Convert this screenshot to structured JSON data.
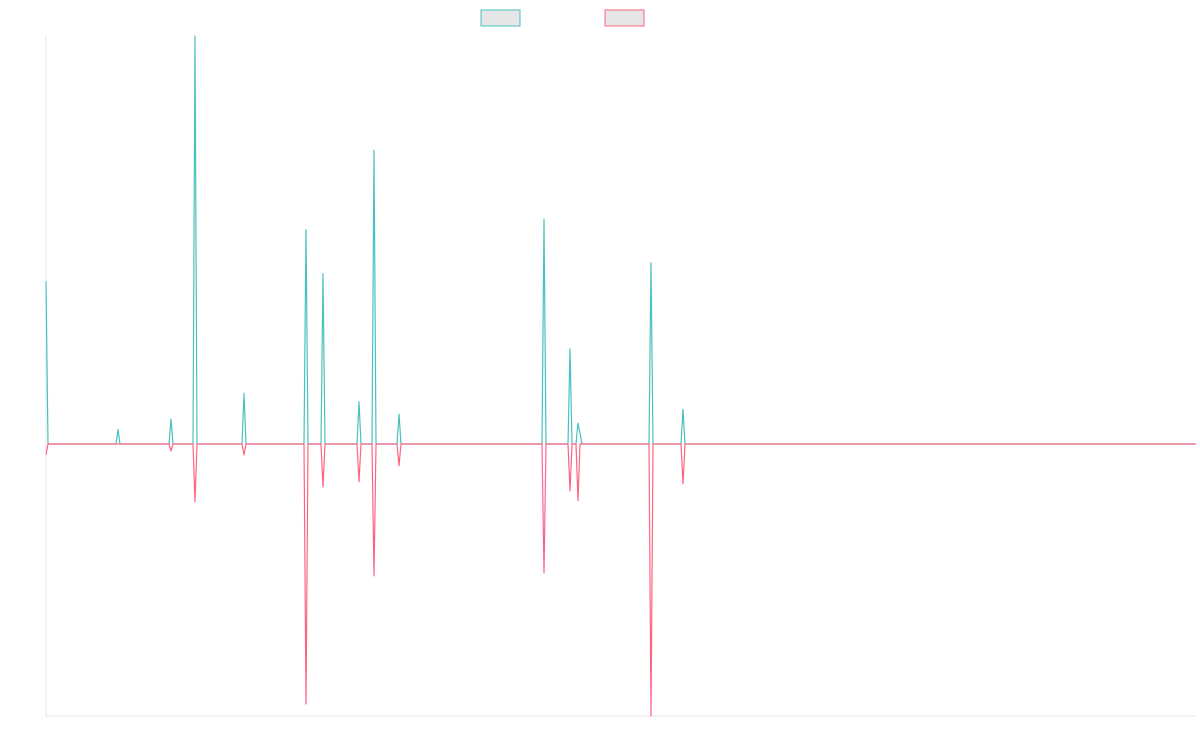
{
  "chart_data": {
    "type": "line",
    "title": "",
    "xlabel": "",
    "ylabel": "",
    "grid": false,
    "legend_position": "top-center",
    "xlim": [
      0,
      1150
    ],
    "ylim": [
      -100,
      150
    ],
    "series": [
      {
        "color": "#4bc0c0",
        "points": [
          [
            0,
            59.9
          ],
          [
            2,
            0
          ],
          [
            70,
            0
          ],
          [
            72,
            5.3
          ],
          [
            74,
            0
          ],
          [
            123,
            0
          ],
          [
            125,
            9.1
          ],
          [
            127,
            0
          ],
          [
            147,
            0
          ],
          [
            149,
            150
          ],
          [
            151,
            0
          ],
          [
            196,
            0
          ],
          [
            198,
            18.6
          ],
          [
            200,
            0
          ],
          [
            258,
            0
          ],
          [
            260,
            78.8
          ],
          [
            262,
            0
          ],
          [
            275,
            0
          ],
          [
            277,
            62.6
          ],
          [
            279,
            0
          ],
          [
            311,
            0
          ],
          [
            313,
            15.6
          ],
          [
            315,
            0
          ],
          [
            326,
            0
          ],
          [
            328,
            108.0
          ],
          [
            330,
            0
          ],
          [
            351,
            0
          ],
          [
            353,
            11.0
          ],
          [
            355,
            0
          ],
          [
            496,
            0
          ],
          [
            498,
            82.6
          ],
          [
            500,
            0
          ],
          [
            522,
            0
          ],
          [
            524,
            35.0
          ],
          [
            526,
            0
          ],
          [
            530,
            0
          ],
          [
            532,
            7.7
          ],
          [
            534,
            4.0
          ],
          [
            536,
            0
          ],
          [
            603,
            0
          ],
          [
            605,
            66.6
          ],
          [
            607,
            0
          ],
          [
            635,
            0
          ],
          [
            637,
            12.8
          ],
          [
            639,
            0
          ],
          [
            1150,
            0
          ]
        ]
      },
      {
        "color": "#ff6384",
        "points": [
          [
            0,
            -4.0
          ],
          [
            2,
            0
          ],
          [
            123,
            0
          ],
          [
            125,
            -2.6
          ],
          [
            127,
            0
          ],
          [
            147,
            0
          ],
          [
            149,
            -21.2
          ],
          [
            151,
            0
          ],
          [
            196,
            0
          ],
          [
            198,
            -4.0
          ],
          [
            200,
            0
          ],
          [
            258,
            0
          ],
          [
            260,
            -95.6
          ],
          [
            262,
            0
          ],
          [
            275,
            0
          ],
          [
            277,
            -15.8
          ],
          [
            279,
            0
          ],
          [
            311,
            0
          ],
          [
            313,
            -13.9
          ],
          [
            315,
            0
          ],
          [
            326,
            0
          ],
          [
            328,
            -48.5
          ],
          [
            330,
            0
          ],
          [
            351,
            0
          ],
          [
            353,
            -8.0
          ],
          [
            355,
            0
          ],
          [
            496,
            0
          ],
          [
            498,
            -47.4
          ],
          [
            500,
            0
          ],
          [
            522,
            0
          ],
          [
            524,
            -17.2
          ],
          [
            526,
            0
          ],
          [
            530,
            0
          ],
          [
            532,
            -20.8
          ],
          [
            534,
            0
          ],
          [
            603,
            0
          ],
          [
            605,
            -100
          ],
          [
            607,
            0
          ],
          [
            635,
            0
          ],
          [
            637,
            -14.7
          ],
          [
            639,
            0
          ],
          [
            1150,
            0
          ]
        ]
      }
    ]
  },
  "legend": {
    "items": [
      {
        "label": "",
        "color": "#4bc0c0"
      },
      {
        "label": "",
        "color": "#ff6384"
      }
    ]
  }
}
